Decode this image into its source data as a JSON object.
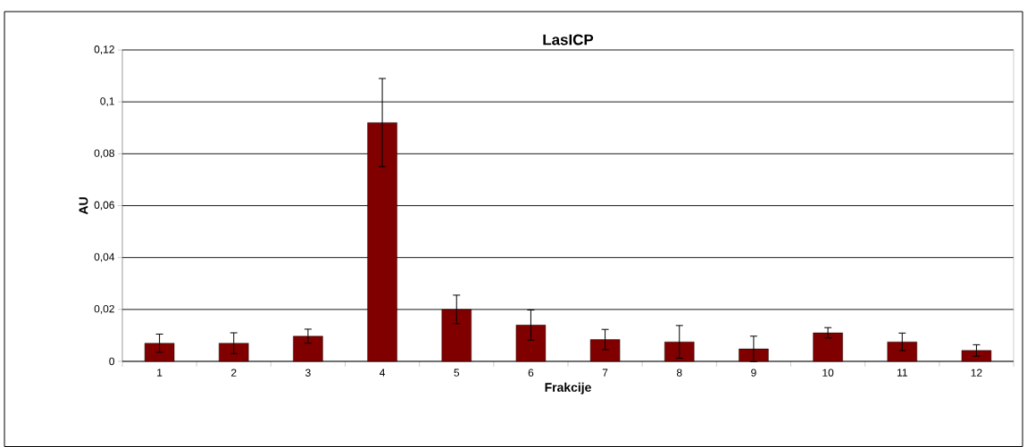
{
  "chart_data": {
    "type": "bar",
    "title": "LasICP",
    "xlabel": "Frakcije",
    "ylabel": "AU",
    "categories": [
      "1",
      "2",
      "3",
      "4",
      "5",
      "6",
      "7",
      "8",
      "9",
      "10",
      "11",
      "12"
    ],
    "values": [
      0.007,
      0.007,
      0.0097,
      0.092,
      0.02,
      0.014,
      0.0084,
      0.0075,
      0.0048,
      0.011,
      0.0075,
      0.0042
    ],
    "errors": [
      0.0035,
      0.004,
      0.0027,
      0.017,
      0.0055,
      0.0058,
      0.0039,
      0.0063,
      0.0049,
      0.002,
      0.0034,
      0.0022
    ],
    "color": "#800000",
    "ylim": [
      0,
      0.12
    ],
    "yticks": [
      {
        "value": 0,
        "label": "0"
      },
      {
        "value": 0.02,
        "label": "0,02"
      },
      {
        "value": 0.04,
        "label": "0,04"
      },
      {
        "value": 0.06,
        "label": "0,06"
      },
      {
        "value": 0.08,
        "label": "0,08"
      },
      {
        "value": 0.1,
        "label": "0,1"
      },
      {
        "value": 0.12,
        "label": "0,12"
      }
    ],
    "grid": "y"
  }
}
